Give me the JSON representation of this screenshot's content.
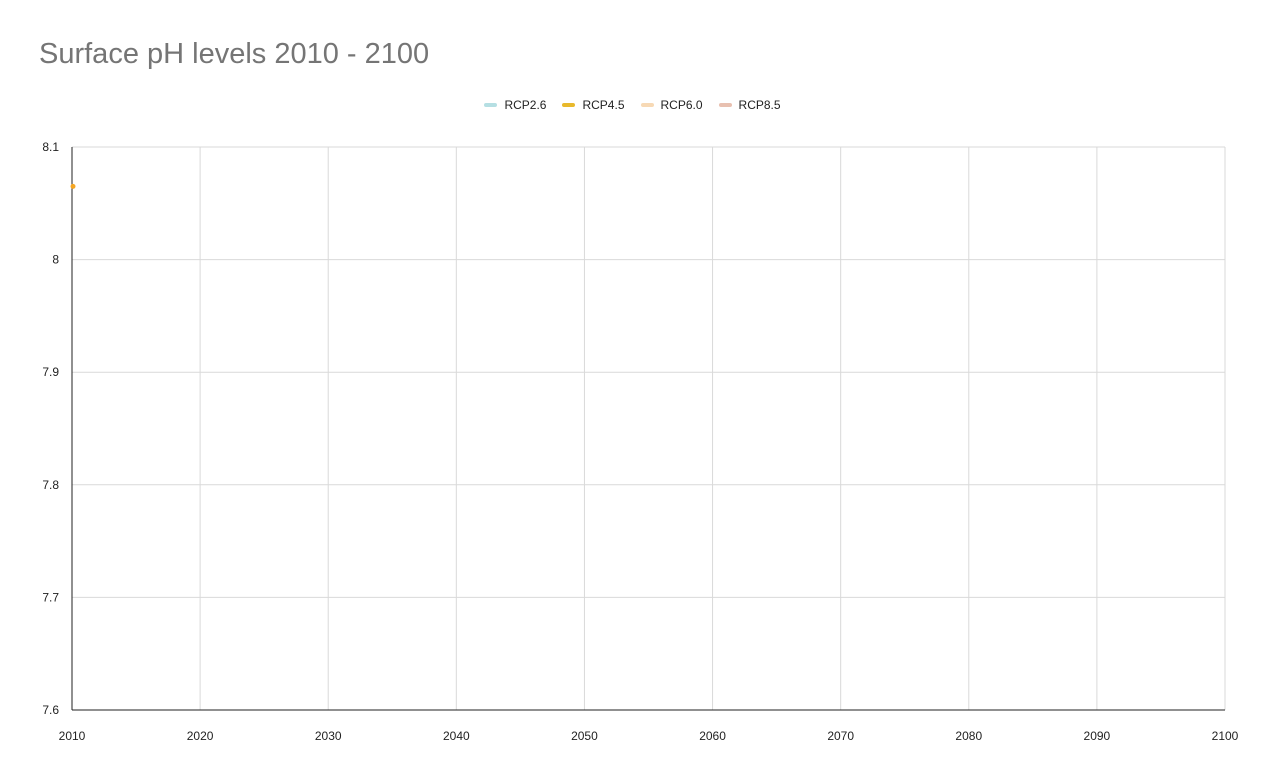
{
  "chart_data": {
    "type": "line",
    "title": "Surface pH levels 2010 - 2100",
    "xlabel": "",
    "ylabel": "",
    "xlim": [
      2010,
      2100
    ],
    "ylim": [
      7.6,
      8.1
    ],
    "x_ticks": [
      "2010",
      "2020",
      "2030",
      "2040",
      "2050",
      "2060",
      "2070",
      "2080",
      "2090",
      "2100"
    ],
    "y_ticks": [
      "8.1",
      "8",
      "7.9",
      "7.8",
      "7.7",
      "7.6"
    ],
    "grid": true,
    "legend_position": "top",
    "series": [
      {
        "name": "RCP2.6",
        "color": "#b5dfe3",
        "points": []
      },
      {
        "name": "RCP4.5",
        "color": "#e8b92c",
        "points": []
      },
      {
        "name": "RCP6.0",
        "color": "#f7d9b5",
        "points": []
      },
      {
        "name": "RCP8.5",
        "color": "#e8c0b0",
        "points": [
          {
            "x": 2010,
            "y": 8.065
          }
        ]
      }
    ],
    "marker_color": "#f5a623"
  }
}
